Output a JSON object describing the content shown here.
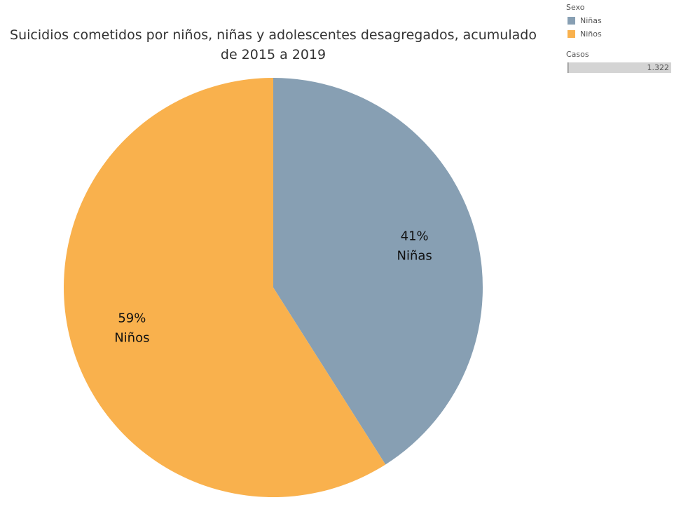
{
  "chart_data": {
    "type": "pie",
    "title": "Suicidios cometidos por niños, niñas y adolescentes desagregados, acumulado de 2015 a 2019",
    "categories": [
      "Niñas",
      "Niños"
    ],
    "values": [
      41,
      59
    ],
    "value_labels": [
      "41%",
      "59%"
    ],
    "colors": [
      "#879fb3",
      "#f9b14d"
    ],
    "legend_title": "Sexo",
    "size_legend": {
      "title": "Casos",
      "max": {
        "value": 1322,
        "label": "1.322"
      }
    }
  }
}
